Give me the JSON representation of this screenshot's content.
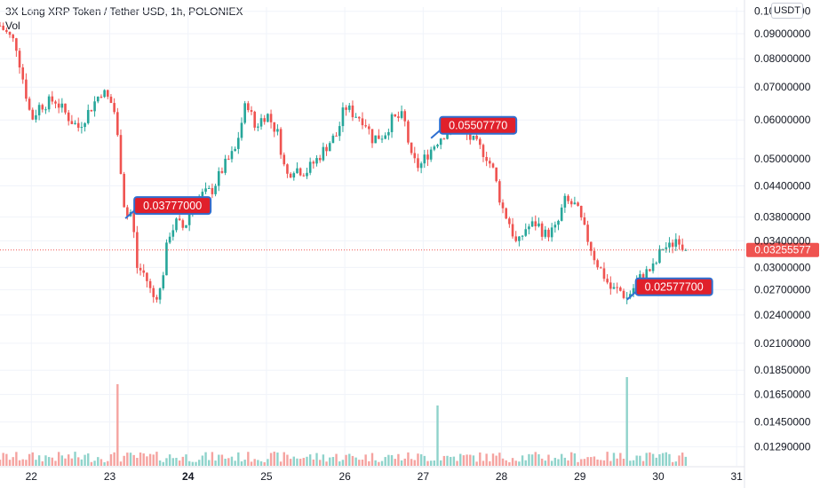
{
  "header": {
    "title": "3X Long XRP Token / Tether USD, 1h, POLONIEX",
    "volume_label": "Vol",
    "currency": "USDT"
  },
  "colors": {
    "up": "#26a69a",
    "down": "#ef5350",
    "up_volume": "#8fd3cb",
    "down_volume": "#f5a3a0",
    "annotation_fill": "#e0202b",
    "annotation_border": "#2f6fd1",
    "price_line": "#ef5350",
    "grid": "#f0f3fa",
    "axis_text": "#131722"
  },
  "chart_data": {
    "type": "candlestick",
    "title": "3X Long XRP Token / Tether USD, 1h, POLONIEX",
    "y_scale": "log",
    "ylim": [
      0.0118,
      0.102
    ],
    "x_range_days": [
      21.6,
      31.1
    ],
    "y_ticks": [
      "0.10000000",
      "0.09000000",
      "0.08000000",
      "0.07000000",
      "0.06000000",
      "0.05000000",
      "0.04400000",
      "0.03800000",
      "0.03400000",
      "0.03000000",
      "0.02700000",
      "0.02400000",
      "0.02100000",
      "0.01850000",
      "0.01650000",
      "0.01450000",
      "0.01290000"
    ],
    "x_ticks": [
      {
        "day": 22,
        "label": "22",
        "bold": false
      },
      {
        "day": 23,
        "label": "23",
        "bold": false
      },
      {
        "day": 24,
        "label": "24",
        "bold": true
      },
      {
        "day": 25,
        "label": "25",
        "bold": false
      },
      {
        "day": 26,
        "label": "26",
        "bold": false
      },
      {
        "day": 27,
        "label": "27",
        "bold": false
      },
      {
        "day": 28,
        "label": "28",
        "bold": false
      },
      {
        "day": 29,
        "label": "29",
        "bold": false
      },
      {
        "day": 30,
        "label": "30",
        "bold": false
      },
      {
        "day": 31,
        "label": "31",
        "bold": false
      }
    ],
    "close_series": [
      [
        21.6,
        0.0935
      ],
      [
        21.8,
        0.086
      ],
      [
        22.0,
        0.06
      ],
      [
        22.1,
        0.064
      ],
      [
        22.3,
        0.066
      ],
      [
        22.5,
        0.06
      ],
      [
        22.6,
        0.058
      ],
      [
        22.8,
        0.065
      ],
      [
        22.9,
        0.069
      ],
      [
        23.05,
        0.064
      ],
      [
        23.12,
        0.052
      ],
      [
        23.2,
        0.038
      ],
      [
        23.28,
        0.039
      ],
      [
        23.35,
        0.03
      ],
      [
        23.45,
        0.029
      ],
      [
        23.55,
        0.026
      ],
      [
        23.65,
        0.027
      ],
      [
        23.75,
        0.035
      ],
      [
        23.85,
        0.037
      ],
      [
        23.95,
        0.036
      ],
      [
        24.05,
        0.04
      ],
      [
        24.15,
        0.042
      ],
      [
        24.3,
        0.043
      ],
      [
        24.45,
        0.048
      ],
      [
        24.6,
        0.052
      ],
      [
        24.75,
        0.066
      ],
      [
        24.85,
        0.058
      ],
      [
        25.0,
        0.062
      ],
      [
        25.15,
        0.056
      ],
      [
        25.25,
        0.046
      ],
      [
        25.35,
        0.048
      ],
      [
        25.5,
        0.047
      ],
      [
        25.65,
        0.05
      ],
      [
        25.8,
        0.054
      ],
      [
        25.9,
        0.056
      ],
      [
        26.0,
        0.064
      ],
      [
        26.1,
        0.062
      ],
      [
        26.25,
        0.06
      ],
      [
        26.35,
        0.055
      ],
      [
        26.5,
        0.056
      ],
      [
        26.6,
        0.06
      ],
      [
        26.75,
        0.061
      ],
      [
        26.85,
        0.05
      ],
      [
        26.95,
        0.048
      ],
      [
        27.05,
        0.051
      ],
      [
        27.2,
        0.055
      ],
      [
        27.35,
        0.058
      ],
      [
        27.45,
        0.06
      ],
      [
        27.55,
        0.056
      ],
      [
        27.65,
        0.054
      ],
      [
        27.8,
        0.051
      ],
      [
        27.9,
        0.047
      ],
      [
        28.0,
        0.04
      ],
      [
        28.1,
        0.037
      ],
      [
        28.2,
        0.033
      ],
      [
        28.3,
        0.036
      ],
      [
        28.45,
        0.037
      ],
      [
        28.55,
        0.035
      ],
      [
        28.7,
        0.036
      ],
      [
        28.8,
        0.041
      ],
      [
        28.95,
        0.04
      ],
      [
        29.05,
        0.036
      ],
      [
        29.2,
        0.031
      ],
      [
        29.3,
        0.029
      ],
      [
        29.4,
        0.027
      ],
      [
        29.5,
        0.027
      ],
      [
        29.6,
        0.026
      ],
      [
        29.7,
        0.0275
      ],
      [
        29.8,
        0.029
      ],
      [
        29.95,
        0.03
      ],
      [
        30.05,
        0.033
      ],
      [
        30.15,
        0.033
      ],
      [
        30.25,
        0.0348
      ],
      [
        30.35,
        0.03255577
      ]
    ],
    "annotations": [
      {
        "label": "0.03777000",
        "day": 23.2,
        "price": 0.03777
      },
      {
        "label": "0.05507770",
        "day": 27.1,
        "price": 0.0550777
      },
      {
        "label": "0.02577700",
        "day": 29.6,
        "price": 0.025777
      }
    ],
    "last_price": {
      "value": 0.03255577,
      "label": "0.03255577"
    },
    "volume_spikes": [
      {
        "day": 23.1,
        "relative": 0.92
      },
      {
        "day": 27.2,
        "relative": 0.68
      },
      {
        "day": 29.6,
        "relative": 1.0
      }
    ]
  }
}
